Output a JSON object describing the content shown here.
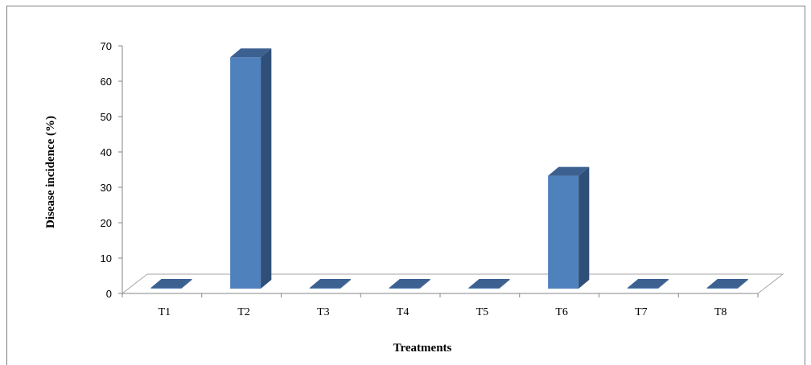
{
  "chart_data": {
    "type": "bar",
    "style": "3d-column",
    "categories": [
      "T1",
      "T2",
      "T3",
      "T4",
      "T5",
      "T6",
      "T7",
      "T8"
    ],
    "values": [
      0,
      67,
      0,
      0,
      0,
      33.5,
      0,
      0
    ],
    "xlabel": "Treatments",
    "ylabel": "Disease incidence (%)",
    "ylim": [
      0,
      70
    ],
    "yticks": [
      0,
      10,
      20,
      30,
      40,
      50,
      60,
      70
    ],
    "grid": false,
    "legend": "none",
    "colors": {
      "bar_front": "#4f81bd",
      "bar_side": "#2f4f78",
      "bar_top": "#3c6191",
      "floor_stroke": "#a6a6a6",
      "axis": "#868686"
    }
  }
}
